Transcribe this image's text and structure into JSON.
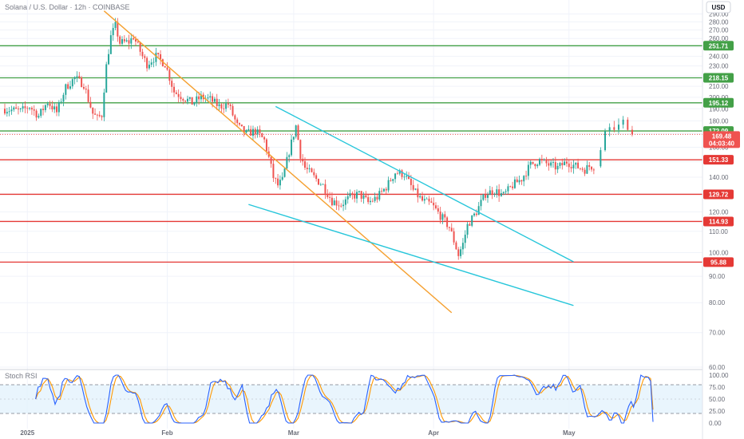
{
  "header": {
    "title": "Solana / U.S. Dollar · 12h · COINBASE",
    "currency_button": "USD"
  },
  "colors": {
    "up": "#26a69a",
    "down": "#ef5350",
    "support_green": "#43a047",
    "resistance_red": "#e53935",
    "trend_orange": "#f5a030",
    "channel_cyan": "#26c6da",
    "rsi_k": "#2962ff",
    "rsi_d": "#ff9800",
    "rsi_band": "#e3f2fd"
  },
  "chart_data": {
    "type": "candlestick",
    "price_axis": {
      "min": 60,
      "max": 300,
      "ticks": [
        "60.00",
        "70.00",
        "80.00",
        "90.00",
        "100.00",
        "110.00",
        "120.00",
        "130.00",
        "140.00",
        "150.00",
        "160.00",
        "170.00",
        "180.00",
        "190.00",
        "200.00",
        "210.00",
        "220.00",
        "230.00",
        "240.00",
        "250.00",
        "260.00",
        "270.00",
        "280.00",
        "290.00"
      ],
      "scale": "log"
    },
    "time_axis": {
      "range": [
        "2024-12-27",
        "2025-05-07"
      ],
      "labels": [
        {
          "text": "2025",
          "date": "2025-01-01"
        },
        {
          "text": "Feb",
          "date": "2025-02-01"
        },
        {
          "text": "Mar",
          "date": "2025-03-01"
        },
        {
          "text": "Apr",
          "date": "2025-04-01"
        },
        {
          "text": "May",
          "date": "2025-05-01"
        }
      ]
    },
    "levels": [
      {
        "value": 251.71,
        "label": "251.71",
        "kind": "support"
      },
      {
        "value": 218.15,
        "label": "218.15",
        "kind": "support"
      },
      {
        "value": 195.12,
        "label": "195.12",
        "kind": "support"
      },
      {
        "value": 172.09,
        "label": "172.09",
        "kind": "support"
      },
      {
        "value": 151.33,
        "label": "151.33",
        "kind": "resistance"
      },
      {
        "value": 129.72,
        "label": "129.72",
        "kind": "resistance"
      },
      {
        "value": 114.93,
        "label": "114.93",
        "kind": "resistance"
      },
      {
        "value": 95.88,
        "label": "95.88",
        "kind": "resistance"
      }
    ],
    "current_price": {
      "value": 169.48,
      "label": "169.48",
      "countdown": "04:03:40"
    },
    "trendlines": [
      {
        "name": "orange-downtrend",
        "from": {
          "date": "2025-01-18",
          "price": 294
        },
        "to": {
          "date": "2025-04-05",
          "price": 76.5
        },
        "color": "orange"
      },
      {
        "name": "channel-upper",
        "from": {
          "date": "2025-02-25",
          "price": 192
        },
        "to": {
          "date": "2025-05-02",
          "price": 96
        },
        "color": "cyan"
      },
      {
        "name": "channel-lower",
        "from": {
          "date": "2025-02-19",
          "price": 124
        },
        "to": {
          "date": "2025-05-02",
          "price": 79
        },
        "color": "cyan"
      }
    ],
    "anchors": [
      [
        "2024-12-27",
        190
      ],
      [
        "2024-12-31",
        188
      ],
      [
        "2025-01-02",
        192
      ],
      [
        "2025-01-04",
        184
      ],
      [
        "2025-01-06",
        196
      ],
      [
        "2025-01-08",
        187
      ],
      [
        "2025-01-10",
        209
      ],
      [
        "2025-01-12",
        218
      ],
      [
        "2025-01-14",
        212
      ],
      [
        "2025-01-15",
        198
      ],
      [
        "2025-01-16",
        186
      ],
      [
        "2025-01-17",
        182
      ],
      [
        "2025-01-18",
        185
      ],
      [
        "2025-01-19",
        230
      ],
      [
        "2025-01-20",
        262
      ],
      [
        "2025-01-21",
        275
      ],
      [
        "2025-01-22",
        255
      ],
      [
        "2025-01-24",
        256
      ],
      [
        "2025-01-25",
        262
      ],
      [
        "2025-01-27",
        240
      ],
      [
        "2025-01-28",
        232
      ],
      [
        "2025-01-30",
        240
      ],
      [
        "2025-02-01",
        232
      ],
      [
        "2025-02-03",
        205
      ],
      [
        "2025-02-05",
        200
      ],
      [
        "2025-02-07",
        195
      ],
      [
        "2025-02-09",
        200
      ],
      [
        "2025-02-11",
        198
      ],
      [
        "2025-02-13",
        192
      ],
      [
        "2025-02-15",
        194
      ],
      [
        "2025-02-17",
        176
      ],
      [
        "2025-02-19",
        170
      ],
      [
        "2025-02-21",
        172
      ],
      [
        "2025-02-23",
        165
      ],
      [
        "2025-02-25",
        140
      ],
      [
        "2025-02-26",
        135
      ],
      [
        "2025-02-27",
        138
      ],
      [
        "2025-03-02",
        176
      ],
      [
        "2025-03-03",
        155
      ],
      [
        "2025-03-04",
        146
      ],
      [
        "2025-03-06",
        140
      ],
      [
        "2025-03-08",
        135
      ],
      [
        "2025-03-10",
        126
      ],
      [
        "2025-03-12",
        124
      ],
      [
        "2025-03-14",
        128
      ],
      [
        "2025-03-16",
        130
      ],
      [
        "2025-03-18",
        125
      ],
      [
        "2025-03-20",
        128
      ],
      [
        "2025-03-22",
        134
      ],
      [
        "2025-03-24",
        143
      ],
      [
        "2025-03-26",
        142
      ],
      [
        "2025-03-28",
        132
      ],
      [
        "2025-03-30",
        126
      ],
      [
        "2025-04-01",
        124
      ],
      [
        "2025-04-03",
        118
      ],
      [
        "2025-04-05",
        112
      ],
      [
        "2025-04-07",
        99
      ],
      [
        "2025-04-08",
        104
      ],
      [
        "2025-04-09",
        113
      ],
      [
        "2025-04-11",
        120
      ],
      [
        "2025-04-13",
        130
      ],
      [
        "2025-04-15",
        132
      ],
      [
        "2025-04-17",
        129
      ],
      [
        "2025-04-19",
        135
      ],
      [
        "2025-04-21",
        139
      ],
      [
        "2025-04-23",
        148
      ],
      [
        "2025-04-25",
        151
      ],
      [
        "2025-04-27",
        148
      ],
      [
        "2025-04-29",
        146
      ],
      [
        "2025-05-01",
        150
      ],
      [
        "2025-05-03",
        147
      ],
      [
        "2025-05-05",
        145
      ],
      [
        "2025-05-06",
        147
      ],
      [
        "2025-05-07",
        147
      ]
    ],
    "final_bars": [
      [
        "2025-05-08",
        147,
        160,
        146,
        158
      ],
      [
        "2025-05-09",
        158,
        174,
        157,
        172
      ],
      [
        "2025-05-10",
        172,
        178,
        168,
        175
      ],
      [
        "2025-05-11",
        175,
        180,
        171,
        173
      ],
      [
        "2025-05-12",
        173,
        182,
        170,
        177
      ],
      [
        "2025-05-13",
        177,
        184,
        174,
        181
      ],
      [
        "2025-05-14",
        181,
        183,
        172,
        173
      ],
      [
        "2025-05-15",
        173,
        176,
        168,
        169.48
      ]
    ]
  },
  "rsi": {
    "title": "Stoch RSI",
    "ticks": [
      {
        "value": 100,
        "label": "100.00"
      },
      {
        "value": 75,
        "label": "75.00"
      },
      {
        "value": 50,
        "label": "50.00"
      },
      {
        "value": 25,
        "label": "25.00"
      },
      {
        "value": 0,
        "label": "0.00"
      }
    ],
    "upper_band": 80,
    "lower_band": 20,
    "k_last": 2.5,
    "d_last": 28
  }
}
